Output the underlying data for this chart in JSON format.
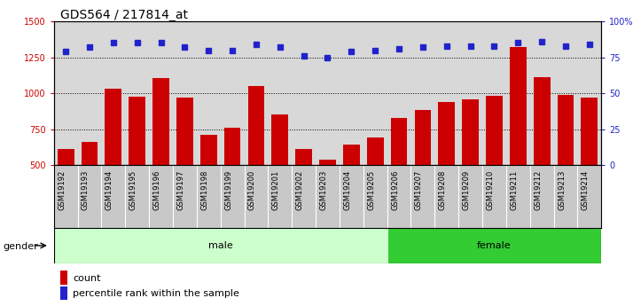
{
  "title": "GDS564 / 217814_at",
  "samples": [
    "GSM19192",
    "GSM19193",
    "GSM19194",
    "GSM19195",
    "GSM19196",
    "GSM19197",
    "GSM19198",
    "GSM19199",
    "GSM19200",
    "GSM19201",
    "GSM19202",
    "GSM19203",
    "GSM19204",
    "GSM19205",
    "GSM19206",
    "GSM19207",
    "GSM19208",
    "GSM19209",
    "GSM19210",
    "GSM19211",
    "GSM19212",
    "GSM19213",
    "GSM19214"
  ],
  "counts": [
    615,
    665,
    1030,
    975,
    1105,
    970,
    710,
    760,
    1050,
    855,
    610,
    540,
    645,
    690,
    830,
    885,
    940,
    960,
    980,
    1320,
    1115,
    990,
    970
  ],
  "percentiles": [
    79,
    82,
    85,
    85,
    85,
    82,
    80,
    80,
    84,
    82,
    76,
    75,
    79,
    80,
    81,
    82,
    83,
    83,
    83,
    85,
    86,
    83,
    84
  ],
  "male_count": 14,
  "female_count": 9,
  "ylim_left": [
    500,
    1500
  ],
  "ylim_right": [
    0,
    100
  ],
  "yticks_left": [
    500,
    750,
    1000,
    1250,
    1500
  ],
  "yticks_right": [
    0,
    25,
    50,
    75,
    100
  ],
  "bar_color": "#cc0000",
  "dot_color": "#2222cc",
  "male_bg": "#ccffcc",
  "female_bg": "#33cc33",
  "plot_bg": "#d8d8d8",
  "tick_bg": "#c8c8c8",
  "title_fontsize": 10,
  "tick_fontsize": 7,
  "label_fontsize": 8,
  "xtick_fontsize": 6
}
